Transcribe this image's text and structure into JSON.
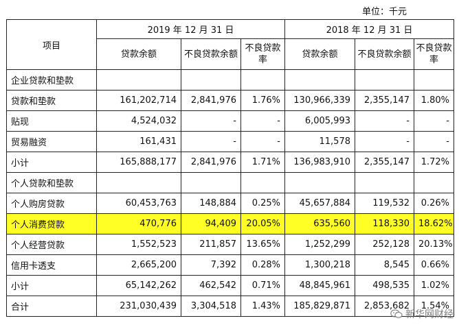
{
  "unit_label": "单位：千元",
  "headers": {
    "item": "项目",
    "year_2019": "2019 年 12 月 31 日",
    "year_2018": "2018 年 12 月 31 日",
    "loan_balance": "贷款余额",
    "npl_balance": "不良贷款余额",
    "npl_ratio": "不良贷款率"
  },
  "rows": [
    {
      "label": "企业贷款和垫款",
      "cells": [
        "",
        "",
        "",
        "",
        "",
        ""
      ]
    },
    {
      "label": "贷款和垫款",
      "cells": [
        "161,202,714",
        "2,841,976",
        "1.76%",
        "130,966,339",
        "2,355,147",
        "1.80%"
      ]
    },
    {
      "label": "贴现",
      "cells": [
        "4,524,032",
        "-",
        "-",
        "6,005,993",
        "-",
        "-"
      ]
    },
    {
      "label": "贸易融资",
      "cells": [
        "161,431",
        "-",
        "-",
        "11,578",
        "-",
        "-"
      ]
    },
    {
      "label": "小计",
      "cells": [
        "165,888,177",
        "2,841,976",
        "1.71%",
        "136,983,910",
        "2,355,147",
        "1.72%"
      ]
    },
    {
      "label": "个人贷款和垫款",
      "cells": [
        "",
        "",
        "",
        "",
        "",
        ""
      ]
    },
    {
      "label": "个人购房贷款",
      "cells": [
        "60,453,763",
        "148,884",
        "0.25%",
        "45,657,884",
        "119,532",
        "0.26%"
      ]
    },
    {
      "label": "个人消费贷款",
      "cells": [
        "470,776",
        "94,409",
        "20.05%",
        "635,560",
        "118,330",
        "18.62%"
      ]
    },
    {
      "label": "个人经营贷款",
      "cells": [
        "1,552,523",
        "211,857",
        "13.65%",
        "1,252,299",
        "252,128",
        "20.13%"
      ]
    },
    {
      "label": "信用卡透支",
      "cells": [
        "2,665,200",
        "7,392",
        "0.28%",
        "1,300,218",
        "8,545",
        "0.66%"
      ]
    },
    {
      "label": "小计",
      "cells": [
        "65,142,262",
        "462,542",
        "0.71%",
        "48,845,961",
        "498,535",
        "1.02%"
      ]
    },
    {
      "label": "合计",
      "cells": [
        "231,030,439",
        "3,304,518",
        "1.43%",
        "185,829,871",
        "2,853,682",
        "1.54%"
      ]
    }
  ],
  "highlight": {
    "row_label": "个人消费贷款",
    "color": "#ffff26"
  },
  "watermark": {
    "text": "新华网财经",
    "icon": "wechat-logo-icon"
  }
}
